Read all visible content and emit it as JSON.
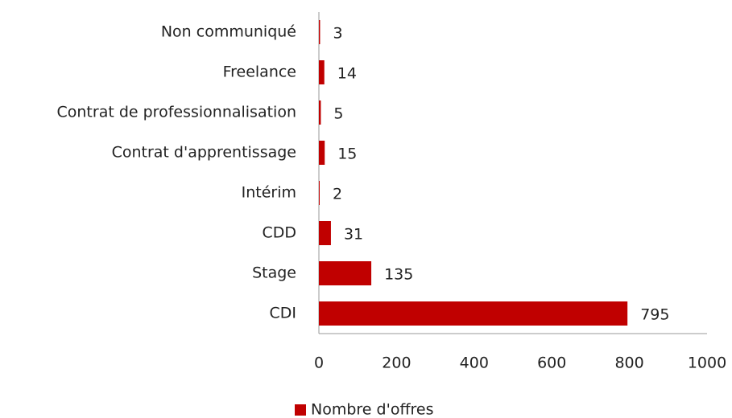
{
  "chart_data": {
    "type": "bar",
    "orientation": "horizontal",
    "categories": [
      "Non communiqué",
      "Freelance",
      "Contrat de professionnalisation",
      "Contrat d'apprentissage",
      "Intérim",
      "CDD",
      "Stage",
      "CDI"
    ],
    "series": [
      {
        "name": "Nombre d'offres",
        "color": "#c00000",
        "values": [
          3,
          14,
          5,
          15,
          2,
          31,
          135,
          795
        ]
      }
    ],
    "xlim": [
      0,
      1000
    ],
    "xticks": [
      0,
      200,
      400,
      600,
      800,
      1000
    ],
    "grid": false,
    "legend": "bottom"
  }
}
